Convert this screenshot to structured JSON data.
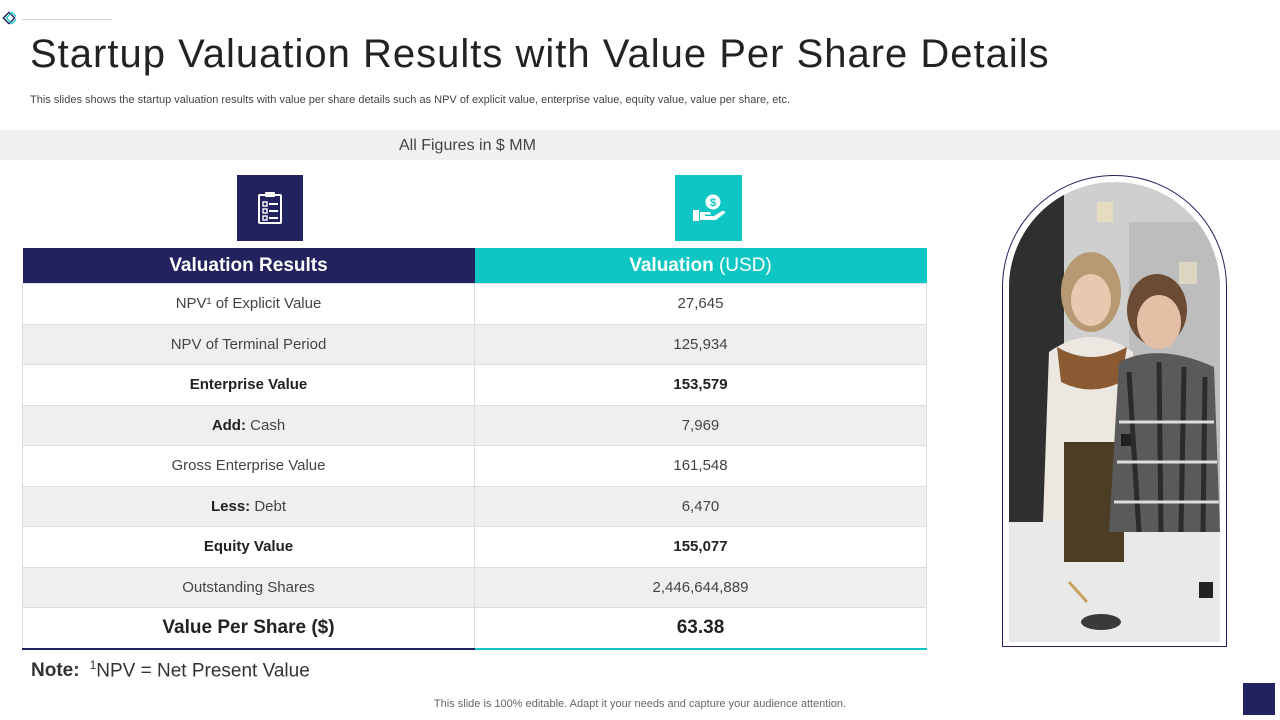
{
  "header": {
    "title": "Startup Valuation Results with Value Per Share Details",
    "subtitle": "This slides shows the startup valuation results with value per share details such as NPV of explicit value, enterprise value, equity value, value per share, etc."
  },
  "figures_note": "All Figures in $ MM",
  "icons": {
    "left": "clipboard-checklist-icon",
    "right": "hand-dollar-coin-icon"
  },
  "table": {
    "col1_header": "Valuation Results",
    "col2_header": "Valuation",
    "col2_unit": "(USD)",
    "rows": [
      {
        "label": "NPV¹ of Explicit Value",
        "value": "27,645"
      },
      {
        "label": "NPV of Terminal Period",
        "value": "125,934"
      },
      {
        "label": "Enterprise Value",
        "value": "153,579"
      },
      {
        "label_bold": "Add:",
        "label": "Cash",
        "value": "7,969"
      },
      {
        "label": "Gross Enterprise Value",
        "value": "161,548"
      },
      {
        "label_bold": "Less:",
        "label": "Debt",
        "value": "6,470"
      },
      {
        "label": "Equity Value",
        "value": "155,077"
      },
      {
        "label": "Outstanding Shares",
        "value": "2,446,644,889"
      },
      {
        "label": "Value Per Share ($)",
        "value": "63.38"
      }
    ]
  },
  "note": {
    "label": "Note:",
    "sup": "1",
    "text": "NPV = Net Present Value"
  },
  "footer": "This slide is 100% editable. Adapt it your needs and capture your audience attention.",
  "colors": {
    "navy": "#22235e",
    "teal": "#0ec6c3"
  }
}
